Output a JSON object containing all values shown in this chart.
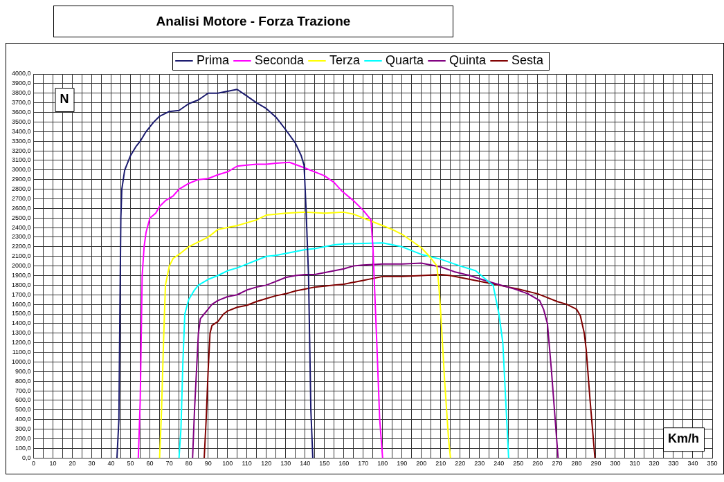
{
  "chart_data": {
    "type": "line",
    "title": "Analisi Motore - Forza Trazione",
    "xlabel": "Km/h",
    "ylabel": "N",
    "legend": "top",
    "grid": true,
    "line_style": "solid",
    "marker": "none",
    "xlim": [
      0,
      350
    ],
    "ylim": [
      0,
      4000
    ],
    "xticks": [
      0,
      {
        "value": 5,
        "label": null
      },
      10,
      {
        "value": 15,
        "label": null
      },
      20,
      {
        "value": 25,
        "label": null
      },
      30,
      {
        "value": 35,
        "label": null
      },
      40,
      {
        "value": 45,
        "label": null
      },
      50,
      {
        "value": 55,
        "label": null
      },
      60,
      {
        "value": 65,
        "label": null
      },
      70,
      {
        "value": 75,
        "label": null
      },
      80,
      {
        "value": 85,
        "label": null
      },
      90,
      {
        "value": 95,
        "label": null
      },
      100,
      {
        "value": 105,
        "label": null
      },
      110,
      {
        "value": 115,
        "label": null
      },
      120,
      {
        "value": 125,
        "label": null
      },
      130,
      {
        "value": 135,
        "label": null
      },
      140,
      {
        "value": 145,
        "label": null
      },
      150,
      {
        "value": 155,
        "label": null
      },
      160,
      {
        "value": 165,
        "label": null
      },
      170,
      {
        "value": 175,
        "label": null
      },
      180,
      {
        "value": 185,
        "label": null
      },
      190,
      {
        "value": 195,
        "label": null
      },
      200,
      {
        "value": 205,
        "label": null
      },
      210,
      {
        "value": 215,
        "label": null
      },
      220,
      {
        "value": 225,
        "label": null
      },
      230,
      {
        "value": 235,
        "label": null
      },
      240,
      {
        "value": 245,
        "label": null
      },
      250,
      {
        "value": 255,
        "label": null
      },
      260,
      {
        "value": 265,
        "label": null
      },
      270,
      {
        "value": 275,
        "label": null
      },
      280,
      {
        "value": 285,
        "label": null
      },
      290,
      {
        "value": 295,
        "label": null
      },
      300,
      {
        "value": 305,
        "label": null
      },
      310,
      {
        "value": 315,
        "label": null
      },
      320,
      {
        "value": 325,
        "label": null
      },
      330,
      {
        "value": 335,
        "label": null
      },
      340,
      {
        "value": 345,
        "label": null
      },
      350
    ],
    "yticks": [
      {
        "value": 0,
        "label": "0,0"
      },
      {
        "value": 100,
        "label": "100,0"
      },
      {
        "value": 200,
        "label": "200,0"
      },
      {
        "value": 300,
        "label": "300,0"
      },
      {
        "value": 400,
        "label": "400,0"
      },
      {
        "value": 500,
        "label": "500,0"
      },
      {
        "value": 600,
        "label": "600,0"
      },
      {
        "value": 700,
        "label": "700,0"
      },
      {
        "value": 800,
        "label": "800,0"
      },
      {
        "value": 900,
        "label": "900,0"
      },
      {
        "value": 1000,
        "label": "1000,0"
      },
      {
        "value": 1100,
        "label": "1100,0"
      },
      {
        "value": 1200,
        "label": "1200,0"
      },
      {
        "value": 1300,
        "label": "1300,0"
      },
      {
        "value": 1400,
        "label": "1400,0"
      },
      {
        "value": 1500,
        "label": "1500,0"
      },
      {
        "value": 1600,
        "label": "1600,0"
      },
      {
        "value": 1700,
        "label": "1700,0"
      },
      {
        "value": 1800,
        "label": "1800,0"
      },
      {
        "value": 1900,
        "label": "1900,0"
      },
      {
        "value": 2000,
        "label": "2000,0"
      },
      {
        "value": 2100,
        "label": "2100,0"
      },
      {
        "value": 2200,
        "label": "2200,0"
      },
      {
        "value": 2300,
        "label": "2300,0"
      },
      {
        "value": 2400,
        "label": "2400,0"
      },
      {
        "value": 2500,
        "label": "2500,0"
      },
      {
        "value": 2600,
        "label": "2600,0"
      },
      {
        "value": 2700,
        "label": "2700,0"
      },
      {
        "value": 2800,
        "label": "2800,0"
      },
      {
        "value": 2900,
        "label": "2900,0"
      },
      {
        "value": 3000,
        "label": "3000,0"
      },
      {
        "value": 3100,
        "label": "3100,0"
      },
      {
        "value": 3200,
        "label": "3200,0"
      },
      {
        "value": 3300,
        "label": "3300,0"
      },
      {
        "value": 3400,
        "label": "3400,0"
      },
      {
        "value": 3500,
        "label": "3500,0"
      },
      {
        "value": 3600,
        "label": "3600,0"
      },
      {
        "value": 3700,
        "label": "3700,0"
      },
      {
        "value": 3800,
        "label": "3800,0"
      },
      {
        "value": 3900,
        "label": "3900,0"
      },
      {
        "value": 4000,
        "label": "4000,0"
      }
    ],
    "series": [
      {
        "name": "Prima",
        "color": "#1a1a6e",
        "x": [
          43,
          44,
          44.5,
          45,
          45.5,
          47,
          50,
          53,
          55,
          58,
          62,
          65,
          70,
          75,
          80,
          85,
          90,
          95,
          100,
          105,
          110,
          115,
          120,
          125,
          130,
          135,
          138,
          139.5,
          140.5,
          141.8,
          143,
          144
        ],
        "values": [
          0,
          400,
          1500,
          2500,
          2800,
          3000,
          3150,
          3250,
          3300,
          3400,
          3500,
          3560,
          3610,
          3620,
          3690,
          3730,
          3800,
          3800,
          3820,
          3840,
          3770,
          3700,
          3640,
          3550,
          3420,
          3280,
          3150,
          3050,
          2600,
          1900,
          500,
          0
        ]
      },
      {
        "name": "Seconda",
        "color": "#ff00ff",
        "x": [
          54,
          55,
          56,
          57,
          58,
          60,
          63,
          65,
          68,
          72,
          75,
          80,
          85,
          90,
          95,
          100,
          105,
          110,
          115,
          120,
          125,
          132,
          140,
          150,
          155,
          159,
          165,
          170,
          174,
          175,
          177,
          178.5,
          180
        ],
        "values": [
          0,
          600,
          1900,
          2200,
          2350,
          2500,
          2550,
          2620,
          2680,
          2730,
          2800,
          2860,
          2900,
          2910,
          2950,
          2980,
          3040,
          3050,
          3060,
          3060,
          3070,
          3080,
          3020,
          2940,
          2870,
          2780,
          2680,
          2580,
          2480,
          2200,
          1200,
          400,
          0
        ]
      },
      {
        "name": "Terza",
        "color": "#ffff00",
        "x": [
          65,
          66,
          67,
          68,
          69,
          70,
          72,
          75,
          80,
          85,
          90,
          95,
          100,
          105,
          110,
          115,
          120,
          125,
          130,
          140,
          150,
          160,
          165,
          170,
          175,
          180,
          185,
          190,
          195,
          200,
          205,
          208,
          209,
          210,
          212,
          214,
          215
        ],
        "values": [
          0,
          500,
          1200,
          1800,
          1900,
          2000,
          2080,
          2120,
          2200,
          2250,
          2300,
          2380,
          2400,
          2420,
          2450,
          2480,
          2530,
          2540,
          2550,
          2560,
          2550,
          2560,
          2540,
          2500,
          2460,
          2420,
          2380,
          2330,
          2260,
          2190,
          2080,
          2000,
          1800,
          1500,
          800,
          200,
          0
        ]
      },
      {
        "name": "Quarta",
        "color": "#00ffff",
        "x": [
          75,
          76,
          77,
          78,
          80,
          83,
          85,
          90,
          95,
          100,
          105,
          110,
          115,
          120,
          125,
          130,
          135,
          140,
          145,
          150,
          155,
          160,
          170,
          180,
          190,
          200,
          210,
          220,
          228,
          235,
          237,
          240,
          242,
          243.5,
          245
        ],
        "values": [
          0,
          300,
          1000,
          1500,
          1650,
          1750,
          1800,
          1860,
          1900,
          1950,
          1980,
          2020,
          2060,
          2100,
          2110,
          2130,
          2150,
          2170,
          2180,
          2200,
          2220,
          2230,
          2235,
          2240,
          2200,
          2120,
          2070,
          2000,
          1950,
          1830,
          1800,
          1500,
          1200,
          600,
          0
        ]
      },
      {
        "name": "Quinta",
        "color": "#800080",
        "x": [
          82,
          83,
          84,
          85,
          86,
          88,
          90,
          92,
          95,
          100,
          105,
          110,
          115,
          120,
          125,
          130,
          135,
          140,
          145,
          150,
          155,
          160,
          165,
          170,
          180,
          190,
          200,
          205,
          210,
          217,
          225,
          235,
          248,
          255,
          261,
          263,
          265,
          267,
          269,
          270.5
        ],
        "values": [
          0,
          500,
          900,
          1300,
          1450,
          1500,
          1550,
          1600,
          1640,
          1680,
          1700,
          1750,
          1780,
          1800,
          1840,
          1880,
          1900,
          1910,
          1910,
          1930,
          1950,
          1970,
          2000,
          2010,
          2020,
          2020,
          2030,
          2010,
          1990,
          1940,
          1900,
          1835,
          1760,
          1710,
          1640,
          1550,
          1400,
          930,
          400,
          0
        ]
      },
      {
        "name": "Sesta",
        "color": "#800000",
        "x": [
          88,
          89,
          90,
          91,
          92,
          95,
          98,
          100,
          105,
          110,
          115,
          120,
          125,
          130,
          135,
          140,
          145,
          150,
          155,
          160,
          165,
          170,
          175,
          180,
          190,
          200,
          210,
          215,
          220,
          230,
          240,
          250,
          260,
          265,
          270,
          275,
          280,
          282,
          284,
          285,
          287,
          289.5
        ],
        "values": [
          0,
          400,
          900,
          1300,
          1380,
          1420,
          1500,
          1530,
          1570,
          1590,
          1630,
          1660,
          1690,
          1710,
          1740,
          1760,
          1780,
          1790,
          1800,
          1810,
          1830,
          1850,
          1870,
          1890,
          1890,
          1900,
          1910,
          1900,
          1880,
          1840,
          1800,
          1760,
          1710,
          1670,
          1630,
          1600,
          1550,
          1480,
          1300,
          1130,
          600,
          0
        ]
      }
    ]
  }
}
